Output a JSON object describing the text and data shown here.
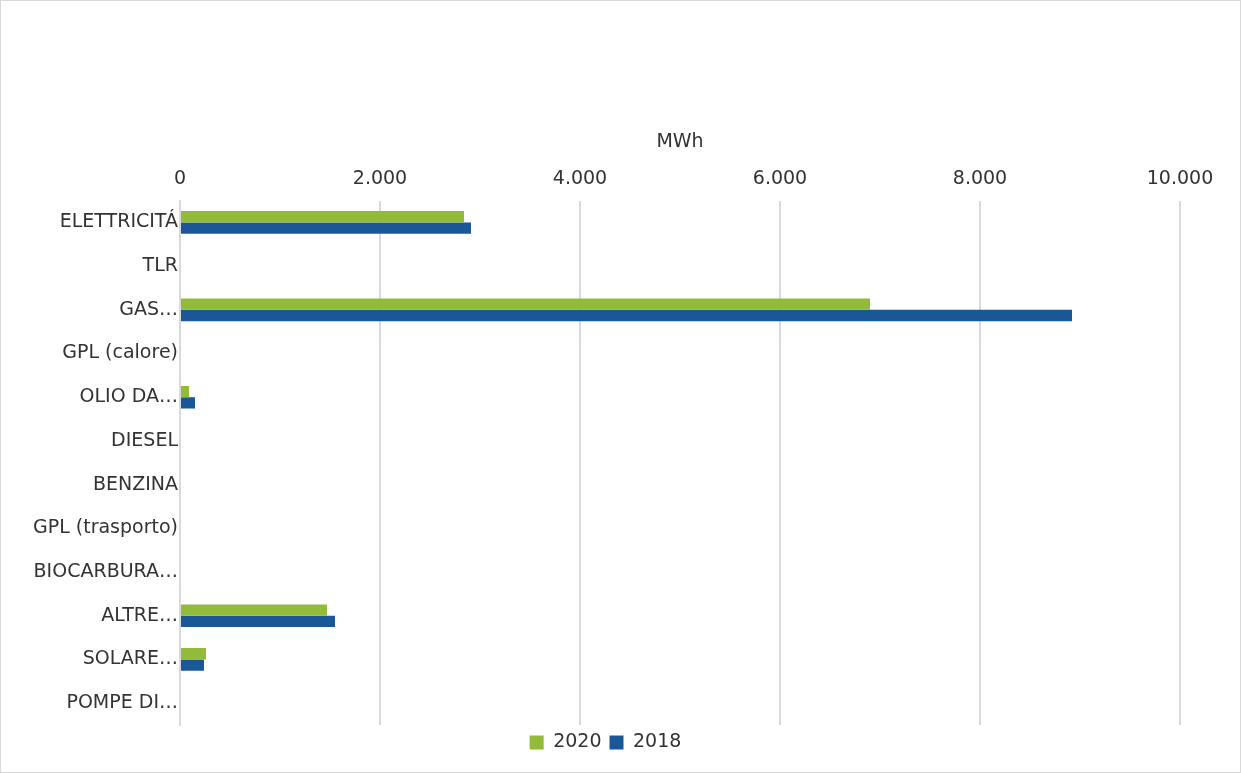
{
  "chart_data": {
    "type": "bar",
    "orientation": "horizontal",
    "xlabel": "MWh",
    "categories": [
      "ELETTRICITÁ",
      "TLR",
      "GAS…",
      "GPL (calore)",
      "OLIO DA…",
      "DIESEL",
      "BENZINA",
      "GPL (trasporto)",
      "BIOCARBURA…",
      "ALTRE…",
      "SOLARE…",
      "POMPE DI…"
    ],
    "series": [
      {
        "name": "2020",
        "color": "#92bb3a",
        "values": [
          2840,
          null,
          6900,
          null,
          90,
          null,
          null,
          null,
          null,
          1470,
          260,
          null
        ]
      },
      {
        "name": "2018",
        "color": "#1b5797",
        "values": [
          2910,
          null,
          8920,
          null,
          150,
          null,
          null,
          null,
          null,
          1550,
          240,
          null
        ]
      }
    ],
    "xlim": [
      0,
      10000
    ],
    "xticks": [
      0,
      {
        "value": 2000,
        "label": "2.000"
      },
      {
        "value": 4000,
        "label": "4.000"
      },
      {
        "value": 6000,
        "label": "6.000"
      },
      {
        "value": 8000,
        "label": "8.000"
      },
      {
        "value": 10000,
        "label": "10.000"
      }
    ],
    "grid": "x",
    "legend": "bottom"
  }
}
